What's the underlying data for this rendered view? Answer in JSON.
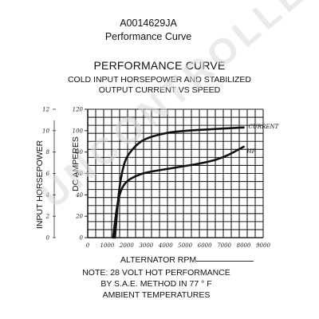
{
  "header": {
    "part_number": "A0014629JA",
    "subtitle": "Performance Curve"
  },
  "watermark": "UNCONTROLLED COPY",
  "note": {
    "line1": "NOTE:  28 VOLT HOT PERFORMANCE",
    "line2": "BY S.A.E. METHOD IN 77 ° F",
    "line3": "AMBIENT TEMPERATURES"
  },
  "chart_data": {
    "type": "line",
    "title": "PERFORMANCE CURVE",
    "subtitle_line1": "COLD INPUT HORSEPOWER AND STABILIZED",
    "subtitle_line2": "OUTPUT CURRENT VS SPEED",
    "xlabel": "ALTERNATOR RPM",
    "ylabel_left": "INPUT HORSEPOWER",
    "ylabel_right": "DC AMPERES",
    "grid": true,
    "xlim": [
      0,
      9000
    ],
    "ylim_hp": [
      0,
      12
    ],
    "ylim_amps": [
      0,
      120
    ],
    "x_ticks": [
      "0",
      "1000",
      "2000",
      "3000",
      "4000",
      "5000",
      "6000",
      "7000",
      "8000",
      "9000"
    ],
    "x_tick_values": [
      0,
      1000,
      2000,
      3000,
      4000,
      5000,
      6000,
      7000,
      8000,
      9000
    ],
    "y_ticks_hp": [
      "0",
      "2",
      "4",
      "6",
      "8",
      "10",
      "12"
    ],
    "y_tick_values_hp": [
      0,
      2,
      4,
      6,
      8,
      10,
      12
    ],
    "y_ticks_amps": [
      "0",
      "20",
      "40",
      "60",
      "80",
      "100",
      "120"
    ],
    "y_tick_values_amps": [
      0,
      20,
      40,
      60,
      80,
      100,
      120
    ],
    "series": [
      {
        "name": "CURRENT",
        "axis": "amps",
        "x": [
          1400,
          1600,
          1800,
          2000,
          2500,
          3000,
          4000,
          5000,
          6000,
          7000,
          8000
        ],
        "y": [
          0,
          45,
          65,
          76,
          87,
          93,
          98,
          100,
          101,
          102,
          103
        ]
      },
      {
        "name": "HP",
        "axis": "amps",
        "x": [
          1300,
          1500,
          1700,
          2000,
          2500,
          3000,
          4000,
          5000,
          6000,
          7000,
          8000
        ],
        "y": [
          0,
          30,
          45,
          53,
          58,
          61,
          64,
          67,
          70,
          75,
          85
        ]
      }
    ]
  }
}
